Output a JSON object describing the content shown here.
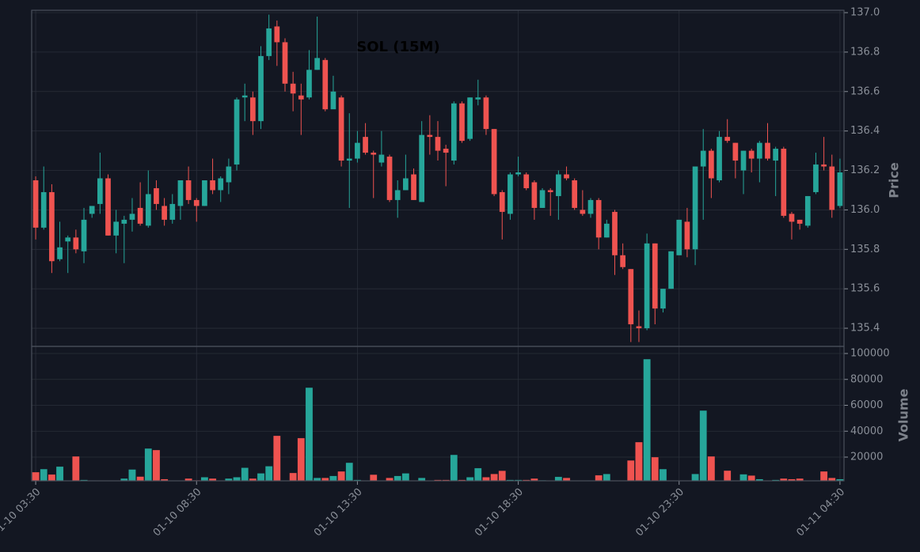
{
  "chart_data": {
    "type": "candlestick",
    "title": "SOL (15M)",
    "ylabel": "Price",
    "volume_label": "Volume",
    "up_color": "#26a69a",
    "down_color": "#ef5350",
    "grid": true,
    "categories": [
      "01-10 03:30",
      null,
      null,
      null,
      null,
      null,
      null,
      null,
      null,
      null,
      null,
      null,
      null,
      null,
      null,
      null,
      null,
      null,
      null,
      null,
      "01-10 08:30",
      null,
      null,
      null,
      null,
      null,
      null,
      null,
      null,
      null,
      null,
      null,
      null,
      null,
      null,
      null,
      null,
      null,
      null,
      null,
      "01-10 13:30",
      null,
      null,
      null,
      null,
      null,
      null,
      null,
      null,
      null,
      null,
      null,
      null,
      null,
      null,
      null,
      null,
      null,
      null,
      null,
      "01-10 18:30",
      null,
      null,
      null,
      null,
      null,
      null,
      null,
      null,
      null,
      null,
      null,
      null,
      null,
      null,
      null,
      null,
      null,
      null,
      null,
      "01-10 23:30",
      null,
      null,
      null,
      null,
      null,
      null,
      null,
      null,
      null,
      null,
      null,
      null,
      null,
      null,
      null,
      null,
      null,
      null,
      null,
      "01-11 04:30"
    ],
    "open": [
      136.15,
      135.91,
      136.09,
      135.75,
      135.84,
      135.86,
      135.79,
      135.98,
      136.03,
      136.16,
      135.87,
      135.93,
      135.95,
      136.01,
      135.92,
      136.11,
      136.02,
      135.95,
      136.02,
      136.15,
      136.05,
      136.02,
      136.15,
      136.1,
      136.14,
      136.23,
      136.57,
      136.57,
      136.45,
      136.78,
      136.93,
      136.85,
      136.64,
      136.58,
      136.57,
      136.71,
      136.76,
      136.51,
      136.57,
      136.25,
      136.26,
      136.37,
      136.29,
      136.24,
      136.27,
      136.05,
      136.1,
      136.18,
      136.04,
      136.38,
      136.37,
      136.31,
      136.25,
      136.54,
      136.36,
      136.56,
      136.57,
      136.41,
      136.09,
      135.98,
      136.18,
      136.18,
      136.14,
      136.01,
      136.1,
      136.07,
      136.18,
      136.15,
      136.0,
      135.98,
      136.05,
      135.86,
      135.99,
      135.77,
      135.7,
      135.41,
      135.4,
      135.83,
      135.5,
      135.6,
      135.77,
      135.94,
      135.8,
      136.22,
      136.3,
      136.15,
      136.37,
      136.34,
      136.2,
      136.3,
      136.26,
      136.34,
      136.25,
      136.31,
      135.98,
      135.95,
      135.92,
      136.09,
      136.23,
      136.22,
      136.02
    ],
    "high": [
      136.17,
      136.22,
      136.13,
      135.94,
      135.87,
      135.9,
      136.01,
      136.02,
      136.29,
      136.18,
      136.0,
      135.97,
      136.06,
      136.14,
      136.2,
      136.15,
      136.06,
      136.08,
      136.15,
      136.22,
      136.06,
      136.15,
      136.26,
      136.17,
      136.26,
      136.57,
      136.64,
      136.6,
      136.83,
      136.99,
      136.96,
      136.87,
      136.7,
      136.64,
      136.81,
      136.98,
      136.77,
      136.68,
      136.58,
      136.49,
      136.4,
      136.44,
      136.3,
      136.4,
      136.28,
      136.15,
      136.28,
      136.21,
      136.45,
      136.48,
      136.45,
      136.33,
      136.55,
      136.55,
      136.57,
      136.66,
      136.58,
      136.41,
      136.1,
      136.19,
      136.27,
      136.19,
      136.15,
      136.11,
      136.11,
      136.2,
      136.22,
      136.16,
      136.1,
      136.06,
      136.06,
      135.95,
      136.0,
      135.83,
      135.7,
      135.49,
      135.88,
      135.83,
      135.6,
      135.79,
      135.95,
      136.01,
      136.22,
      136.41,
      136.31,
      136.4,
      136.46,
      136.34,
      136.3,
      136.31,
      136.35,
      136.44,
      136.32,
      136.32,
      135.99,
      135.95,
      136.07,
      136.29,
      136.37,
      136.28,
      136.26
    ],
    "low": [
      135.85,
      135.9,
      135.68,
      135.74,
      135.68,
      135.78,
      135.73,
      135.96,
      135.98,
      135.87,
      135.78,
      135.73,
      135.89,
      135.92,
      135.91,
      136.0,
      135.92,
      135.93,
      135.95,
      136.03,
      135.94,
      136.02,
      136.08,
      136.04,
      136.08,
      136.2,
      136.45,
      136.38,
      136.41,
      136.76,
      136.73,
      136.6,
      136.5,
      136.38,
      136.56,
      136.71,
      136.5,
      136.52,
      136.22,
      136.01,
      136.24,
      136.28,
      136.06,
      136.22,
      136.04,
      135.96,
      136.1,
      136.05,
      136.04,
      136.28,
      136.25,
      136.12,
      136.23,
      136.34,
      136.35,
      136.53,
      136.38,
      136.07,
      135.85,
      135.95,
      136.17,
      136.1,
      135.95,
      136.01,
      135.97,
      135.95,
      136.15,
      136.0,
      135.97,
      135.96,
      135.8,
      135.86,
      135.67,
      135.7,
      135.33,
      135.33,
      135.39,
      135.42,
      135.48,
      135.6,
      135.77,
      135.76,
      135.72,
      135.95,
      136.06,
      136.14,
      136.34,
      136.16,
      136.08,
      136.19,
      136.14,
      136.25,
      136.07,
      135.96,
      135.85,
      135.9,
      135.91,
      136.08,
      136.2,
      135.96,
      136.01
    ],
    "close": [
      135.91,
      136.09,
      135.74,
      135.81,
      135.86,
      135.8,
      135.95,
      136.02,
      136.16,
      135.87,
      135.94,
      135.95,
      135.98,
      135.93,
      136.08,
      136.03,
      135.95,
      136.03,
      136.15,
      136.05,
      136.02,
      136.15,
      136.1,
      136.16,
      136.22,
      136.56,
      136.58,
      136.45,
      136.78,
      136.92,
      136.85,
      136.64,
      136.59,
      136.56,
      136.71,
      136.77,
      136.51,
      136.6,
      136.25,
      136.26,
      136.34,
      136.29,
      136.28,
      136.28,
      136.05,
      136.1,
      136.16,
      136.05,
      136.38,
      136.37,
      136.3,
      136.29,
      136.54,
      136.35,
      136.57,
      136.57,
      136.41,
      136.08,
      135.99,
      136.18,
      136.19,
      136.11,
      136.01,
      136.1,
      136.09,
      136.18,
      136.16,
      136.01,
      135.98,
      136.05,
      135.86,
      135.93,
      135.77,
      135.71,
      135.42,
      135.4,
      135.83,
      135.5,
      135.6,
      135.79,
      135.95,
      135.8,
      136.22,
      136.3,
      136.16,
      136.37,
      136.35,
      136.25,
      136.3,
      136.26,
      136.34,
      136.26,
      136.31,
      135.97,
      135.94,
      135.93,
      136.07,
      136.23,
      136.22,
      136.0,
      136.19
    ],
    "volume": [
      8400,
      10800,
      6600,
      12700,
      2000,
      20600,
      2500,
      2000,
      1800,
      1700,
      1800,
      3500,
      10500,
      5000,
      26700,
      25500,
      3000,
      1700,
      1800,
      3500,
      2200,
      4500,
      3500,
      1800,
      3500,
      4500,
      11800,
      3500,
      7500,
      13000,
      36500,
      1700,
      7800,
      34700,
      73700,
      4000,
      4000,
      5500,
      9000,
      15700,
      2500,
      1700,
      6500,
      1800,
      4000,
      5500,
      7500,
      1800,
      4000,
      1700,
      2500,
      2500,
      21800,
      2500,
      4500,
      11500,
      4500,
      7000,
      9500,
      2500,
      2500,
      2500,
      3500,
      2200,
      1800,
      4800,
      4000,
      1700,
      1800,
      2000,
      6000,
      7000,
      2000,
      2000,
      17500,
      31600,
      95700,
      20000,
      10800,
      1700,
      1800,
      1700,
      7000,
      56000,
      20600,
      1800,
      9600,
      1800,
      6800,
      5800,
      3000,
      2000,
      2500,
      3500,
      3000,
      3500,
      1700,
      2000,
      9000,
      4000,
      3000
    ],
    "ylim": [
      135.308,
      137.012
    ],
    "yticks": [
      135.4,
      135.6,
      135.8,
      {
        "value": 136,
        "label": "136.0"
      },
      136.2,
      136.4,
      136.6,
      136.8,
      {
        "value": 137,
        "label": "137.0"
      }
    ],
    "volume_ylim": [
      1680,
      105500
    ],
    "volume_yticks": [
      20000,
      40000,
      60000,
      80000,
      100000
    ]
  }
}
